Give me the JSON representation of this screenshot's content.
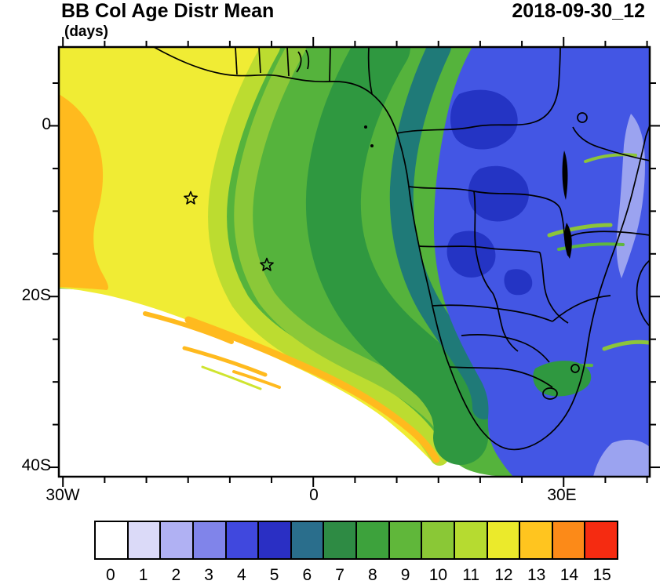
{
  "header": {
    "title": "BB Col Age Distr Mean",
    "units": "(days)",
    "timestamp": "2018-09-30_12"
  },
  "axes": {
    "lat_ticks": [
      {
        "label": "0"
      },
      {
        "label": "20S"
      },
      {
        "label": "40S"
      }
    ],
    "lon_ticks": [
      {
        "label": "30W"
      },
      {
        "label": "0"
      },
      {
        "label": "30E"
      }
    ]
  },
  "colorbar": {
    "labels": [
      "0",
      "1",
      "2",
      "3",
      "4",
      "5",
      "6",
      "7",
      "8",
      "9",
      "10",
      "11",
      "12",
      "13",
      "14",
      "15"
    ],
    "colors": [
      "#FFFFFF",
      "#DBDAF8",
      "#B0B1F3",
      "#8084EA",
      "#4048DE",
      "#2A2FC4",
      "#2A6E8C",
      "#2E8B44",
      "#3DA23C",
      "#60B73A",
      "#8AC836",
      "#B6DB30",
      "#EBEA2B",
      "#FFC51F",
      "#FC8A18",
      "#F52B11"
    ]
  },
  "chart_data": {
    "type": "heatmap",
    "subtype": "filled-contour-geographic-map",
    "title": "BB Col Age Distr Mean",
    "units": "days",
    "timestamp": "2018-09-30_12",
    "lon_range": [
      -31,
      40
    ],
    "lat_range": [
      -41,
      9
    ],
    "lon_tick_labels": [
      "30W",
      "0",
      "30E"
    ],
    "lat_tick_labels": [
      "0",
      "20S",
      "40S"
    ],
    "grid": false,
    "levels": [
      0,
      1,
      2,
      3,
      4,
      5,
      6,
      7,
      8,
      9,
      10,
      11,
      12,
      13,
      14,
      15
    ],
    "palette": [
      "#FFFFFF",
      "#DBDAF8",
      "#B0B1F3",
      "#8084EA",
      "#4048DE",
      "#2A2FC4",
      "#2A6E8C",
      "#2E8B44",
      "#3DA23C",
      "#60B73A",
      "#8AC836",
      "#B6DB30",
      "#EBEA2B",
      "#FFC51F",
      "#FC8A18",
      "#F52B11"
    ],
    "colorbar_position": "bottom",
    "markers": [
      {
        "type": "star",
        "lon": -15,
        "lat": -8.5
      },
      {
        "type": "star",
        "lon": -5.5,
        "lat": -16.5
      }
    ],
    "overlay": "African coastline and country borders in black",
    "pattern_summary": "Mean aerosol column age ~12-14 days (yellow/orange) over the eastern tropical Atlantic and far west, 7-11 days (greens) over the Gulf of Guinea and central Atlantic plume, 2-5 days (blues) over central/southern Africa source regions, and <1 day (white) over the far southeastern Atlantic."
  }
}
